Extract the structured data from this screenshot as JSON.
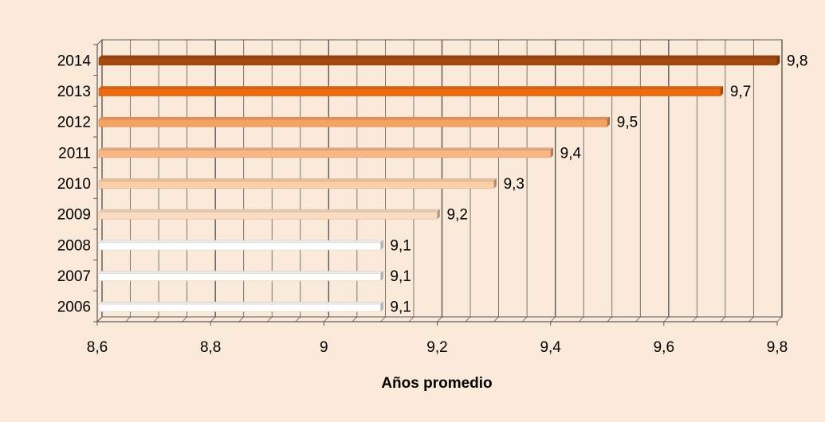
{
  "chart_data": {
    "type": "bar",
    "orientation": "horizontal",
    "categories": [
      "2006",
      "2007",
      "2008",
      "2009",
      "2010",
      "2011",
      "2012",
      "2013",
      "2014"
    ],
    "values": [
      9.1,
      9.1,
      9.1,
      9.2,
      9.3,
      9.4,
      9.5,
      9.7,
      9.8
    ],
    "data_labels": [
      "9,1",
      "9,1",
      "9,1",
      "9,2",
      "9,3",
      "9,4",
      "9,5",
      "9,7",
      "9,8"
    ],
    "bar_colors": [
      "#ffffff",
      "#ffffff",
      "#ffffff",
      "#fcdcc0",
      "#fbcfa8",
      "#f9b786",
      "#f6a263",
      "#ec6c12",
      "#a24a0f"
    ],
    "xlabel": "Años promedio",
    "ylabel": "",
    "xlim": [
      8.6,
      9.8
    ],
    "xticks": [
      8.6,
      8.8,
      9.0,
      9.2,
      9.4,
      9.6,
      9.8
    ],
    "xtick_labels": [
      "8,6",
      "8,8",
      "9",
      "9,2",
      "9,4",
      "9,6",
      "9,8"
    ],
    "grid": true,
    "legend": "none",
    "colors": {
      "background": "#fbe9d9",
      "plot_background": "#fbe9d9",
      "grid": "#595959",
      "text": "#000000"
    }
  }
}
